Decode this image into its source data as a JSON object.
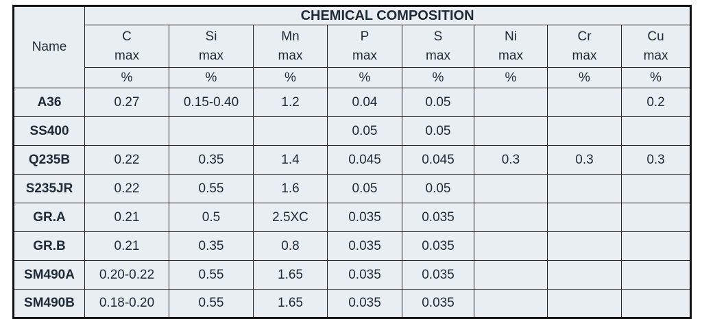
{
  "table": {
    "name_header": "Name",
    "title": "CHEMICAL COMPOSITION",
    "columns": [
      {
        "element": "C",
        "limit": "max",
        "unit": "%"
      },
      {
        "element": "Si",
        "limit": "max",
        "unit": "%"
      },
      {
        "element": "Mn",
        "limit": "max",
        "unit": "%"
      },
      {
        "element": "P",
        "limit": "max",
        "unit": "%"
      },
      {
        "element": "S",
        "limit": "max",
        "unit": "%"
      },
      {
        "element": "Ni",
        "limit": "max",
        "unit": "%"
      },
      {
        "element": "Cr",
        "limit": "max",
        "unit": "%"
      },
      {
        "element": "Cu",
        "limit": "max",
        "unit": "%"
      }
    ],
    "rows": [
      {
        "name": "A36",
        "values": [
          "0.27",
          "0.15-0.40",
          "1.2",
          "0.04",
          "0.05",
          null,
          null,
          "0.2"
        ]
      },
      {
        "name": "SS400",
        "values": [
          null,
          null,
          null,
          "0.05",
          "0.05",
          null,
          null,
          null
        ]
      },
      {
        "name": "Q235B",
        "values": [
          "0.22",
          "0.35",
          "1.4",
          "0.045",
          "0.045",
          "0.3",
          "0.3",
          "0.3"
        ]
      },
      {
        "name": "S235JR",
        "values": [
          "0.22",
          "0.55",
          "1.6",
          "0.05",
          "0.05",
          null,
          null,
          null
        ]
      },
      {
        "name": "GR.A",
        "values": [
          "0.21",
          "0.5",
          "2.5XC",
          "0.035",
          "0.035",
          null,
          null,
          null
        ]
      },
      {
        "name": "GR.B",
        "values": [
          "0.21",
          "0.35",
          "0.8",
          "0.035",
          "0.035",
          null,
          null,
          null
        ]
      },
      {
        "name": "SM490A",
        "values": [
          "0.20-0.22",
          "0.55",
          "1.65",
          "0.035",
          "0.035",
          null,
          null,
          null
        ]
      },
      {
        "name": "SM490B",
        "values": [
          "0.18-0.20",
          "0.55",
          "1.65",
          "0.035",
          "0.035",
          null,
          null,
          null
        ]
      }
    ]
  }
}
